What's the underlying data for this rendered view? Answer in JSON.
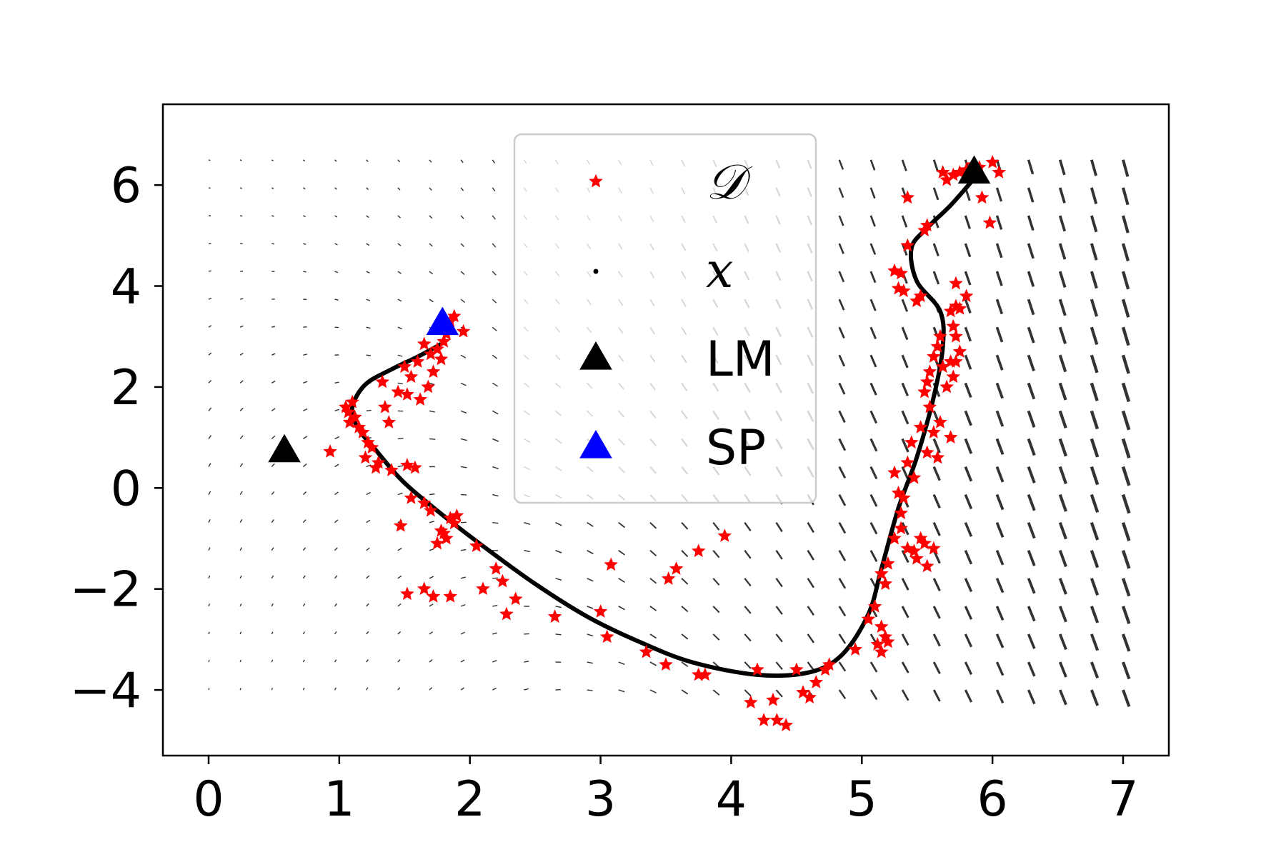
{
  "chart_data": {
    "type": "scatter",
    "title": "",
    "xlabel": "",
    "ylabel": "",
    "xlim": [
      -0.35,
      7.35
    ],
    "ylim": [
      -5.3,
      7.6
    ],
    "x_ticks": [
      0,
      1,
      2,
      3,
      4,
      5,
      6,
      7
    ],
    "y_ticks": [
      -4,
      -2,
      0,
      2,
      4,
      6
    ],
    "x_tick_labels": [
      "0",
      "1",
      "2",
      "3",
      "4",
      "5",
      "6",
      "7"
    ],
    "y_tick_labels": [
      "−4",
      "−2",
      "0",
      "2",
      "4",
      "6"
    ],
    "grid": false,
    "legend_position": "top-center",
    "colors": {
      "D": "#ff0000",
      "x": "#000000",
      "LM": "#000000",
      "SP": "#0000ff",
      "quiver": "#333333"
    },
    "legend": [
      {
        "key": "D",
        "label": "𝒟",
        "marker": "star"
      },
      {
        "key": "x",
        "label": "x",
        "marker": "dot"
      },
      {
        "key": "LM",
        "label": "LM",
        "marker": "triangle"
      },
      {
        "key": "SP",
        "label": "SP",
        "marker": "triangle"
      }
    ],
    "series": [
      {
        "key": "D",
        "marker": "star",
        "points": [
          [
            0.93,
            0.72
          ],
          [
            1.05,
            1.6
          ],
          [
            1.07,
            1.5
          ],
          [
            1.08,
            1.3
          ],
          [
            1.1,
            1.7
          ],
          [
            1.12,
            1.4
          ],
          [
            1.15,
            1.2
          ],
          [
            1.18,
            1.1
          ],
          [
            1.2,
            0.6
          ],
          [
            1.22,
            0.9
          ],
          [
            1.25,
            0.8
          ],
          [
            1.28,
            0.4
          ],
          [
            1.3,
            0.5
          ],
          [
            1.33,
            2.1
          ],
          [
            1.35,
            1.6
          ],
          [
            1.38,
            1.3
          ],
          [
            1.4,
            0.35
          ],
          [
            1.45,
            1.9
          ],
          [
            1.47,
            -0.75
          ],
          [
            1.5,
            2.4
          ],
          [
            1.52,
            1.85
          ],
          [
            1.55,
            2.2
          ],
          [
            1.52,
            0.45
          ],
          [
            1.55,
            -0.2
          ],
          [
            1.58,
            0.4
          ],
          [
            1.6,
            2.5
          ],
          [
            1.62,
            1.75
          ],
          [
            1.65,
            2.85
          ],
          [
            1.68,
            2.0
          ],
          [
            1.7,
            2.65
          ],
          [
            1.72,
            2.3
          ],
          [
            1.75,
            2.75
          ],
          [
            1.78,
            2.55
          ],
          [
            1.8,
            2.9
          ],
          [
            1.82,
            3.05
          ],
          [
            1.85,
            3.3
          ],
          [
            1.88,
            3.4
          ],
          [
            1.95,
            3.1
          ],
          [
            1.65,
            -0.3
          ],
          [
            1.7,
            -0.45
          ],
          [
            1.75,
            -1.1
          ],
          [
            1.78,
            -0.85
          ],
          [
            1.8,
            -0.9
          ],
          [
            1.82,
            -1.0
          ],
          [
            1.85,
            -0.6
          ],
          [
            1.88,
            -0.7
          ],
          [
            1.9,
            -0.55
          ],
          [
            1.52,
            -2.1
          ],
          [
            1.65,
            -2.0
          ],
          [
            1.72,
            -2.15
          ],
          [
            1.85,
            -2.15
          ],
          [
            2.05,
            -1.15
          ],
          [
            2.1,
            -2.0
          ],
          [
            2.2,
            -1.6
          ],
          [
            2.25,
            -1.85
          ],
          [
            2.28,
            -2.5
          ],
          [
            2.35,
            -2.2
          ],
          [
            2.65,
            -2.55
          ],
          [
            3.0,
            -2.45
          ],
          [
            3.05,
            -2.95
          ],
          [
            3.08,
            -1.52
          ],
          [
            3.35,
            -3.25
          ],
          [
            3.5,
            -3.5
          ],
          [
            3.52,
            -1.8
          ],
          [
            3.58,
            -1.6
          ],
          [
            3.75,
            -3.7
          ],
          [
            3.8,
            -3.7
          ],
          [
            3.75,
            -1.25
          ],
          [
            3.95,
            -0.95
          ],
          [
            4.15,
            -4.25
          ],
          [
            4.2,
            -3.6
          ],
          [
            4.25,
            -4.6
          ],
          [
            4.32,
            -4.2
          ],
          [
            4.35,
            -4.6
          ],
          [
            4.42,
            -4.7
          ],
          [
            4.5,
            -3.6
          ],
          [
            4.55,
            -4.05
          ],
          [
            4.6,
            -4.15
          ],
          [
            4.65,
            -3.85
          ],
          [
            4.72,
            -3.6
          ],
          [
            4.75,
            -3.5
          ],
          [
            4.95,
            -3.2
          ],
          [
            5.05,
            -2.6
          ],
          [
            5.1,
            -2.35
          ],
          [
            5.12,
            -3.1
          ],
          [
            5.15,
            -2.75
          ],
          [
            5.15,
            -3.25
          ],
          [
            5.18,
            -2.95
          ],
          [
            5.2,
            -3.05
          ],
          [
            5.15,
            -1.7
          ],
          [
            5.18,
            -1.9
          ],
          [
            5.2,
            -1.5
          ],
          [
            5.25,
            -1.0
          ],
          [
            5.3,
            -0.5
          ],
          [
            5.3,
            -0.8
          ],
          [
            5.32,
            -0.2
          ],
          [
            5.25,
            0.3
          ],
          [
            5.28,
            -0.1
          ],
          [
            5.35,
            -1.2
          ],
          [
            5.4,
            -1.25
          ],
          [
            5.42,
            -1.4
          ],
          [
            5.45,
            -1.0
          ],
          [
            5.48,
            -1.1
          ],
          [
            5.5,
            -1.55
          ],
          [
            5.55,
            -1.2
          ],
          [
            5.35,
            0.5
          ],
          [
            5.38,
            0.9
          ],
          [
            5.4,
            0.2
          ],
          [
            5.45,
            1.2
          ],
          [
            5.5,
            0.7
          ],
          [
            5.52,
            1.6
          ],
          [
            5.55,
            1.1
          ],
          [
            5.58,
            0.6
          ],
          [
            5.6,
            1.3
          ],
          [
            5.48,
            1.9
          ],
          [
            5.5,
            2.1
          ],
          [
            5.52,
            2.3
          ],
          [
            5.55,
            2.6
          ],
          [
            5.58,
            2.8
          ],
          [
            5.6,
            3.0
          ],
          [
            5.62,
            2.4
          ],
          [
            5.65,
            2.0
          ],
          [
            5.68,
            2.5
          ],
          [
            5.7,
            2.2
          ],
          [
            5.7,
            3.2
          ],
          [
            5.72,
            3.0
          ],
          [
            5.68,
            1.0
          ],
          [
            5.72,
            2.5
          ],
          [
            5.75,
            2.7
          ],
          [
            5.68,
            3.5
          ],
          [
            5.72,
            3.6
          ],
          [
            5.75,
            3.55
          ],
          [
            5.72,
            4.05
          ],
          [
            5.8,
            3.8
          ],
          [
            5.25,
            4.3
          ],
          [
            5.3,
            4.25
          ],
          [
            5.28,
            3.95
          ],
          [
            5.32,
            3.9
          ],
          [
            5.42,
            3.7
          ],
          [
            5.45,
            3.8
          ],
          [
            5.35,
            4.8
          ],
          [
            5.48,
            5.1
          ],
          [
            5.5,
            5.2
          ],
          [
            5.35,
            5.75
          ],
          [
            5.62,
            6.25
          ],
          [
            5.65,
            6.1
          ],
          [
            5.7,
            6.2
          ],
          [
            5.75,
            6.25
          ],
          [
            5.8,
            6.3
          ],
          [
            5.85,
            6.4
          ],
          [
            5.9,
            6.35
          ],
          [
            5.92,
            5.75
          ],
          [
            5.98,
            5.25
          ],
          [
            6.0,
            6.45
          ],
          [
            6.05,
            6.25
          ]
        ]
      },
      {
        "key": "x",
        "marker": "dot",
        "points": [
          [
            1.78,
            2.85
          ],
          [
            1.6,
            2.6
          ],
          [
            1.4,
            2.35
          ],
          [
            1.2,
            2.05
          ],
          [
            1.1,
            1.6
          ],
          [
            1.14,
            1.2
          ],
          [
            1.28,
            0.75
          ],
          [
            1.48,
            0.15
          ],
          [
            1.75,
            -0.45
          ],
          [
            2.1,
            -1.15
          ],
          [
            2.5,
            -1.9
          ],
          [
            2.9,
            -2.55
          ],
          [
            3.3,
            -3.05
          ],
          [
            3.7,
            -3.45
          ],
          [
            4.2,
            -3.7
          ],
          [
            4.6,
            -3.65
          ],
          [
            4.85,
            -3.3
          ],
          [
            5.05,
            -2.5
          ],
          [
            5.15,
            -1.6
          ],
          [
            5.28,
            -0.4
          ],
          [
            5.42,
            0.6
          ],
          [
            5.55,
            1.8
          ],
          [
            5.62,
            2.8
          ],
          [
            5.6,
            3.5
          ],
          [
            5.42,
            4.1
          ],
          [
            5.38,
            4.75
          ],
          [
            5.5,
            5.15
          ],
          [
            5.68,
            5.6
          ],
          [
            5.85,
            6.1
          ]
        ]
      },
      {
        "key": "LM",
        "marker": "triangle",
        "points": [
          [
            0.58,
            0.73
          ],
          [
            5.86,
            6.25
          ]
        ]
      },
      {
        "key": "SP",
        "marker": "triangle",
        "points": [
          [
            1.79,
            3.25
          ]
        ]
      }
    ]
  }
}
